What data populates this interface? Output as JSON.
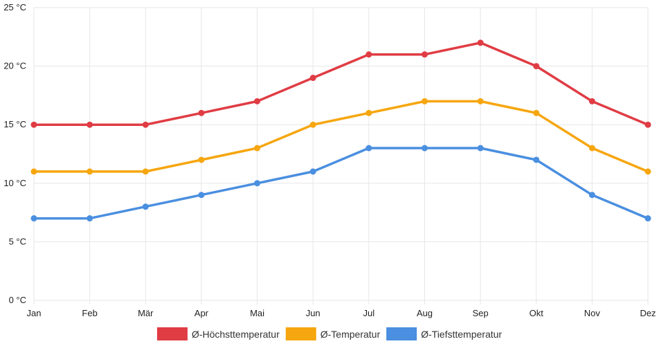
{
  "chart_data": {
    "type": "line",
    "title": "",
    "xlabel": "",
    "ylabel": "",
    "categories": [
      "Jan",
      "Feb",
      "Mär",
      "Apr",
      "Mai",
      "Jun",
      "Jul",
      "Aug",
      "Sep",
      "Okt",
      "Nov",
      "Dez"
    ],
    "ylim": [
      0,
      25
    ],
    "yticks": [
      0,
      5,
      10,
      15,
      20,
      25
    ],
    "y_tick_labels": [
      "0 °C",
      "5 °C",
      "10 °C",
      "15 °C",
      "20 °C",
      "25 °C"
    ],
    "grid": true,
    "legend_position": "bottom",
    "series": [
      {
        "name": "Ø-Höchsttemperatur",
        "color": "#e03c44",
        "values": [
          15,
          15,
          15,
          16,
          17,
          19,
          21,
          21,
          22,
          20,
          17,
          15
        ]
      },
      {
        "name": "Ø-Temperatur",
        "color": "#f6a60f",
        "values": [
          11,
          11,
          11,
          12,
          13,
          15,
          16,
          17,
          17,
          16,
          13,
          11
        ]
      },
      {
        "name": "Ø-Tiefsttemperatur",
        "color": "#4a8fe0",
        "values": [
          7,
          7,
          8,
          9,
          10,
          11,
          13,
          13,
          13,
          12,
          9,
          7
        ]
      }
    ]
  }
}
